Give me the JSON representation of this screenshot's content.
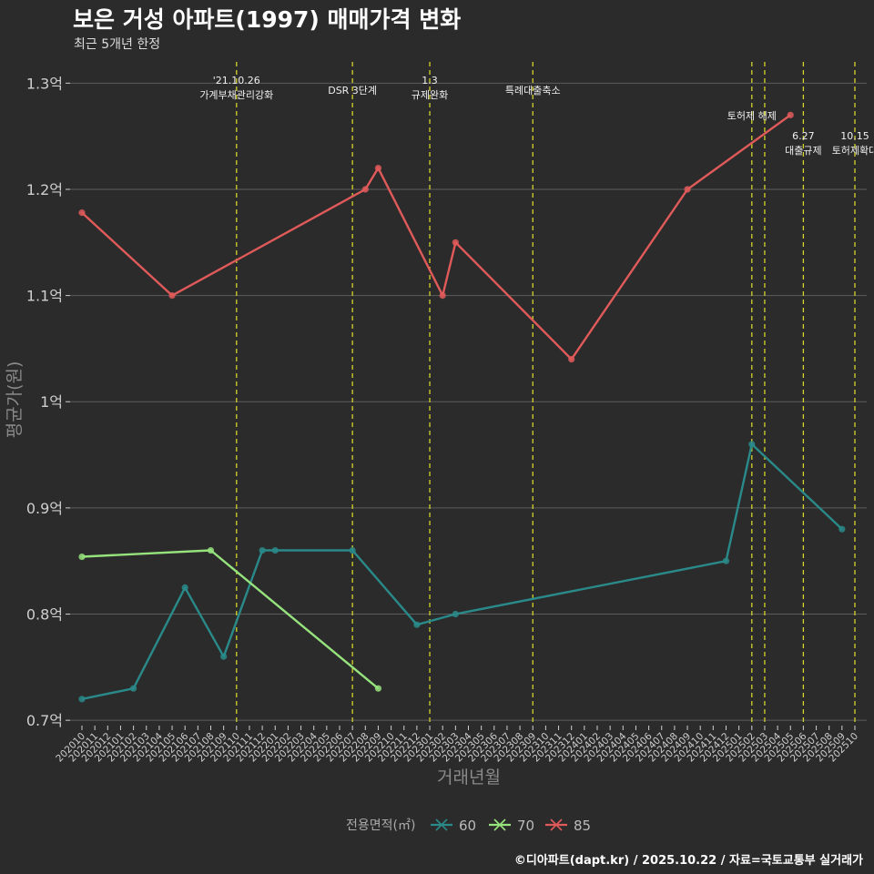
{
  "chart_data": {
    "type": "line",
    "title": "보은 거성 아파트(1997) 매매가격 변화",
    "subtitle": "최근 5개년 한정",
    "xlabel": "거래년월",
    "ylabel": "평균가(원)",
    "caption": "©디아파트(dapt.kr) / 2025.10.22 / 자료=국토교통부 실거래가",
    "legend_title": "전용면적(㎡)",
    "legend_position": "bottom",
    "ylim": [
      0.695,
      1.32
    ],
    "y_ticks": [
      0.7,
      0.8,
      0.9,
      1.0,
      1.1,
      1.2,
      1.3
    ],
    "y_tick_labels": [
      "0.7억",
      "0.8억",
      "0.9억",
      "1억",
      "1.1억",
      "1.2억",
      "1.3억"
    ],
    "categories": [
      "202010",
      "202011",
      "202012",
      "202101",
      "202102",
      "202103",
      "202104",
      "202105",
      "202106",
      "202107",
      "202108",
      "202109",
      "202110",
      "202111",
      "202112",
      "202201",
      "202202",
      "202203",
      "202204",
      "202205",
      "202206",
      "202207",
      "202208",
      "202209",
      "202210",
      "202211",
      "202212",
      "202301",
      "202302",
      "202303",
      "202304",
      "202305",
      "202306",
      "202307",
      "202308",
      "202309",
      "202310",
      "202311",
      "202312",
      "202401",
      "202402",
      "202403",
      "202404",
      "202405",
      "202406",
      "202407",
      "202408",
      "202409",
      "202410",
      "202411",
      "202412",
      "202501",
      "202502",
      "202503",
      "202504",
      "202505",
      "202506",
      "202507",
      "202508",
      "202509",
      "202510"
    ],
    "series": [
      {
        "name": "60",
        "color": "#2a8a8a",
        "marker": "x",
        "points": [
          {
            "x": "202010",
            "y": 0.72
          },
          {
            "x": "202102",
            "y": 0.73
          },
          {
            "x": "202106",
            "y": 0.825
          },
          {
            "x": "202109",
            "y": 0.76
          },
          {
            "x": "202112",
            "y": 0.86
          },
          {
            "x": "202201",
            "y": 0.86
          },
          {
            "x": "202207",
            "y": 0.86
          },
          {
            "x": "202212",
            "y": 0.79
          },
          {
            "x": "202303",
            "y": 0.8
          },
          {
            "x": "202412",
            "y": 0.85
          },
          {
            "x": "202502",
            "y": 0.96
          },
          {
            "x": "202509",
            "y": 0.88
          }
        ]
      },
      {
        "name": "70",
        "color": "#96e37d",
        "marker": "x",
        "points": [
          {
            "x": "202010",
            "y": 0.854
          },
          {
            "x": "202108",
            "y": 0.86
          },
          {
            "x": "202209",
            "y": 0.73
          }
        ]
      },
      {
        "name": "85",
        "color": "#e05a5a",
        "marker": "x",
        "points": [
          {
            "x": "202010",
            "y": 1.178
          },
          {
            "x": "202105",
            "y": 1.1
          },
          {
            "x": "202208",
            "y": 1.2
          },
          {
            "x": "202209",
            "y": 1.22
          },
          {
            "x": "202302",
            "y": 1.1
          },
          {
            "x": "202303",
            "y": 1.15
          },
          {
            "x": "202312",
            "y": 1.04
          },
          {
            "x": "202409",
            "y": 1.2
          },
          {
            "x": "202505",
            "y": 1.27
          }
        ]
      }
    ],
    "events": [
      {
        "x": "202110",
        "lines": [
          "'21.10.26",
          "가계부채관리강화"
        ],
        "row": 0
      },
      {
        "x": "202207",
        "lines": [
          "DSR 3단계"
        ],
        "row": 2
      },
      {
        "x": "202301",
        "lines": [
          "1.3",
          "규제완화"
        ],
        "row": 0
      },
      {
        "x": "202309",
        "lines": [
          "특례대출축소"
        ],
        "row": 2
      },
      {
        "x": "202502",
        "lines": [
          "토허제 해제"
        ],
        "row": 1
      },
      {
        "x": "202503",
        "lines": [],
        "row": 1
      },
      {
        "x": "202506",
        "lines": [
          "6.27",
          "대출규제"
        ],
        "row": 3
      },
      {
        "x": "202510",
        "lines": [
          "10.15",
          "토허제확대"
        ],
        "row": 3
      }
    ],
    "event_line_color": "#d4d42a",
    "grid": true
  }
}
